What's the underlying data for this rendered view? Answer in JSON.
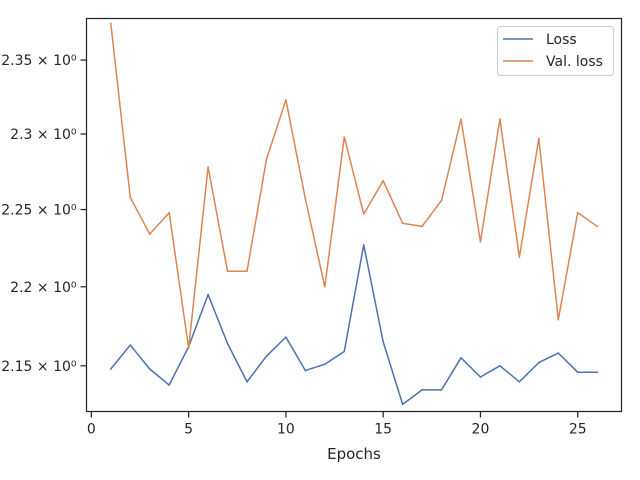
{
  "chart_data": {
    "type": "line",
    "xlabel": "Epochs",
    "ylabel": "",
    "xlim": [
      -0.25,
      27.25
    ],
    "ylim": [
      2.1216,
      2.3786
    ],
    "y_scale": "log",
    "x_ticks": [
      0,
      5,
      10,
      15,
      20,
      25
    ],
    "x_tick_labels": [
      "0",
      "5",
      "10",
      "15",
      "20",
      "25"
    ],
    "y_ticks": [
      2.15,
      2.2,
      2.25,
      2.3,
      2.35
    ],
    "y_tick_labels": [
      "2.15 × 10⁰",
      "2.2 × 10⁰",
      "2.25 × 10⁰",
      "2.3 × 10⁰",
      "2.35 × 10⁰"
    ],
    "grid": false,
    "legend_position": "top-right",
    "x": [
      1,
      2,
      3,
      4,
      5,
      6,
      7,
      8,
      9,
      10,
      11,
      12,
      13,
      14,
      15,
      16,
      17,
      18,
      19,
      20,
      21,
      22,
      23,
      24,
      25,
      26
    ],
    "series": [
      {
        "name": "Loss",
        "color": "#4c72b0",
        "values": [
          2.148,
          2.163,
          2.148,
          2.138,
          2.162,
          2.195,
          2.164,
          2.14,
          2.156,
          2.168,
          2.147,
          2.151,
          2.159,
          2.227,
          2.165,
          2.126,
          2.135,
          2.135,
          2.155,
          2.143,
          2.15,
          2.14,
          2.152,
          2.158,
          2.146,
          2.146
        ]
      },
      {
        "name": "Val. loss",
        "color": "#dd8452",
        "values": [
          2.375,
          2.258,
          2.234,
          2.248,
          2.161,
          2.278,
          2.21,
          2.21,
          2.283,
          2.323,
          2.257,
          2.2,
          2.298,
          2.247,
          2.269,
          2.241,
          2.239,
          2.256,
          2.31,
          2.229,
          2.31,
          2.219,
          2.297,
          2.179,
          2.248,
          2.239
        ]
      }
    ]
  }
}
